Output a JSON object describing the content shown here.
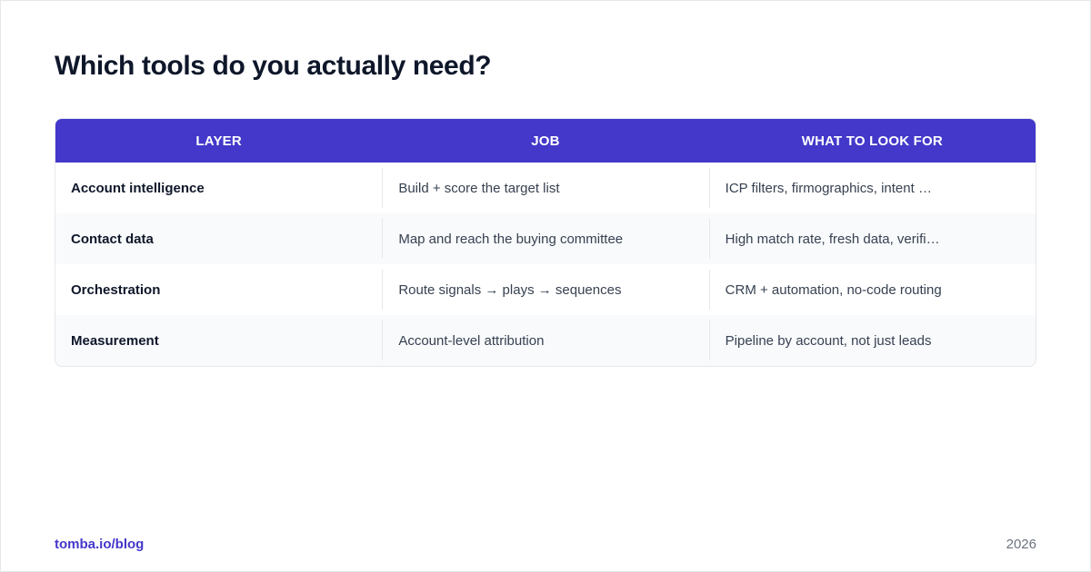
{
  "title": "Which tools do you actually need?",
  "table": {
    "headers": [
      "LAYER",
      "JOB",
      "WHAT TO LOOK FOR"
    ],
    "rows": [
      [
        "Account intelligence",
        "Build + score the target list",
        "ICP filters, firmographics, intent …"
      ],
      [
        "Contact data",
        "Map and reach the buying committee",
        "High match rate, fresh data, verifi…"
      ],
      [
        "Orchestration",
        "Route signals → plays → sequences",
        "CRM + automation, no-code routing"
      ],
      [
        "Measurement",
        "Account-level attribution",
        "Pipeline by account, not just leads"
      ]
    ]
  },
  "footer": {
    "link": "tomba.io/blog",
    "year": "2026"
  },
  "colors": {
    "accent": "#4338ca",
    "title": "#0f172a",
    "row_alt": "#f8fafc"
  }
}
